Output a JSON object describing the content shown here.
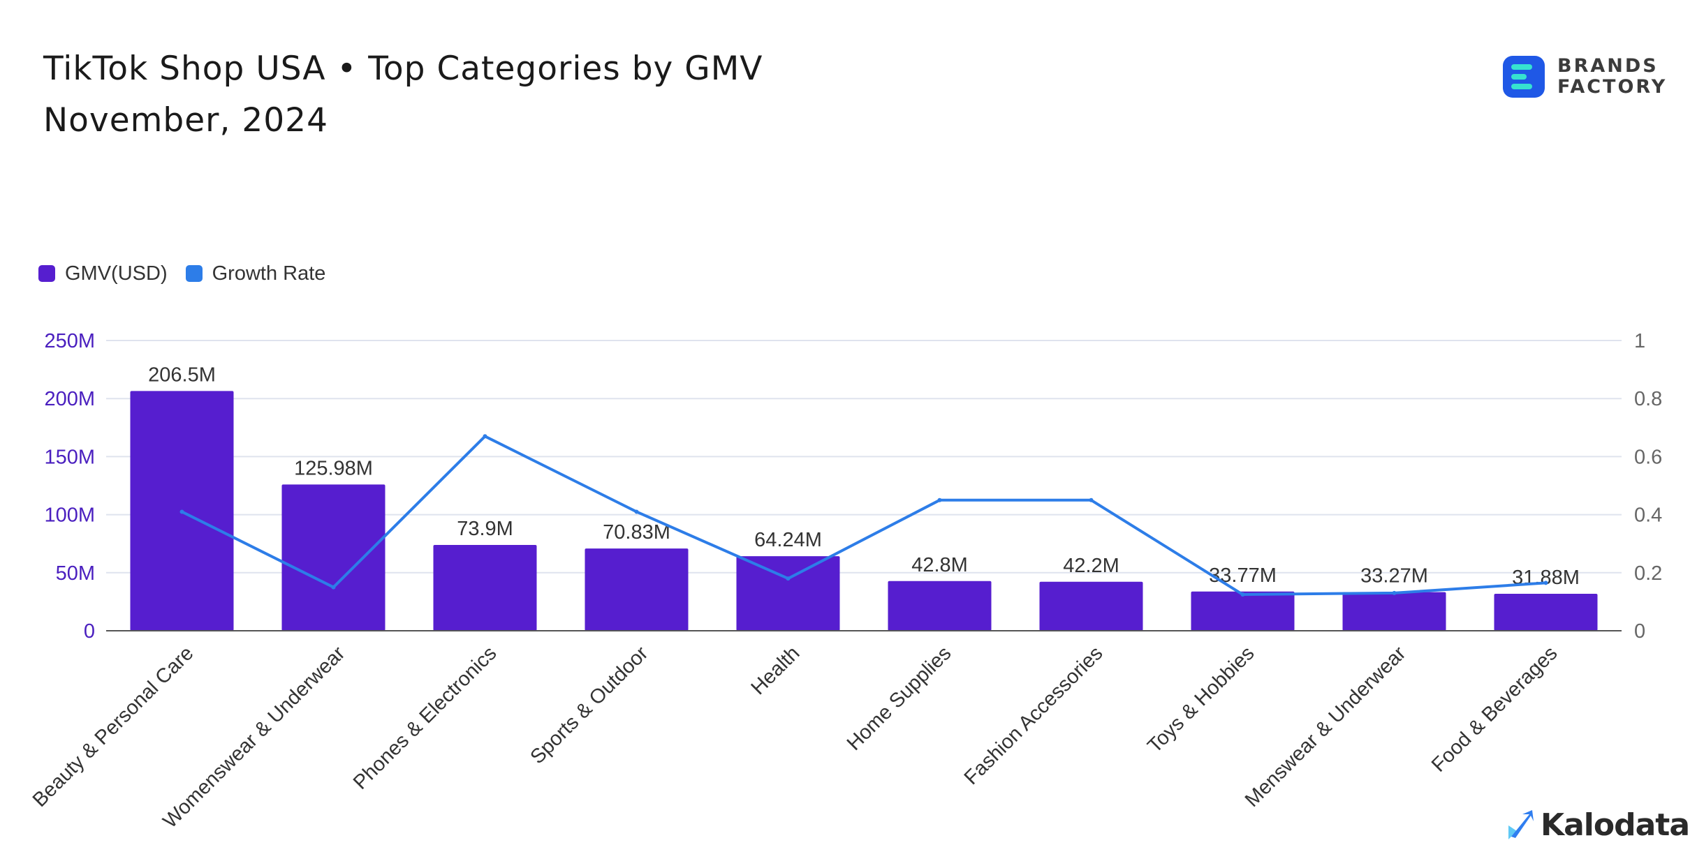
{
  "header": {
    "title": "TikTok Shop USA • Top Categories by GMV",
    "subtitle": "November, 2024"
  },
  "brand": {
    "line1": "BRANDS",
    "line2": "FACTORY",
    "icon": "brands-factory-logo-icon"
  },
  "footer": {
    "brand_name": "Kalodata",
    "icon": "kalodata-logo-icon"
  },
  "legend": {
    "bar_label": "GMV(USD)",
    "line_label": "Growth Rate"
  },
  "colors": {
    "bar": "#561ecf",
    "line": "#2d7de8",
    "left_axis_text": "#4a1fbf",
    "right_axis_text": "#666666",
    "grid": "#dfe3ee",
    "baseline": "#555555"
  },
  "chart_data": {
    "type": "bar",
    "categories": [
      "Beauty & Personal Care",
      "Womenswear & Underwear",
      "Phones & Electronics",
      "Sports & Outdoor",
      "Health",
      "Home Supplies",
      "Fashion Accessories",
      "Toys & Hobbies",
      "Menswear & Underwear",
      "Food & Beverages"
    ],
    "series": [
      {
        "name": "GMV(USD)",
        "type": "bar",
        "axis": "left",
        "values": [
          206500000,
          125980000,
          73900000,
          70830000,
          64240000,
          42800000,
          42200000,
          33770000,
          33270000,
          31880000
        ],
        "labels": [
          "206.5M",
          "125.98M",
          "73.9M",
          "70.83M",
          "64.24M",
          "42.8M",
          "42.2M",
          "33.77M",
          "33.27M",
          "31.88M"
        ]
      },
      {
        "name": "Growth Rate",
        "type": "line",
        "axis": "right",
        "values": [
          0.41,
          0.15,
          0.67,
          0.41,
          0.18,
          0.45,
          0.45,
          0.125,
          0.13,
          0.165
        ]
      }
    ],
    "y_left": {
      "ylim": [
        0,
        250000000
      ],
      "ticks": [
        0,
        50000000,
        100000000,
        150000000,
        200000000,
        250000000
      ],
      "tick_labels": [
        "0",
        "50M",
        "100M",
        "150M",
        "200M",
        "250M"
      ]
    },
    "y_right": {
      "ylim": [
        0,
        1
      ],
      "ticks": [
        0,
        0.2,
        0.4,
        0.6,
        0.8,
        1
      ],
      "tick_labels": [
        "0",
        "0.2",
        "0.4",
        "0.6",
        "0.8",
        "1"
      ]
    },
    "grid": true,
    "legend_position": "top-left"
  }
}
